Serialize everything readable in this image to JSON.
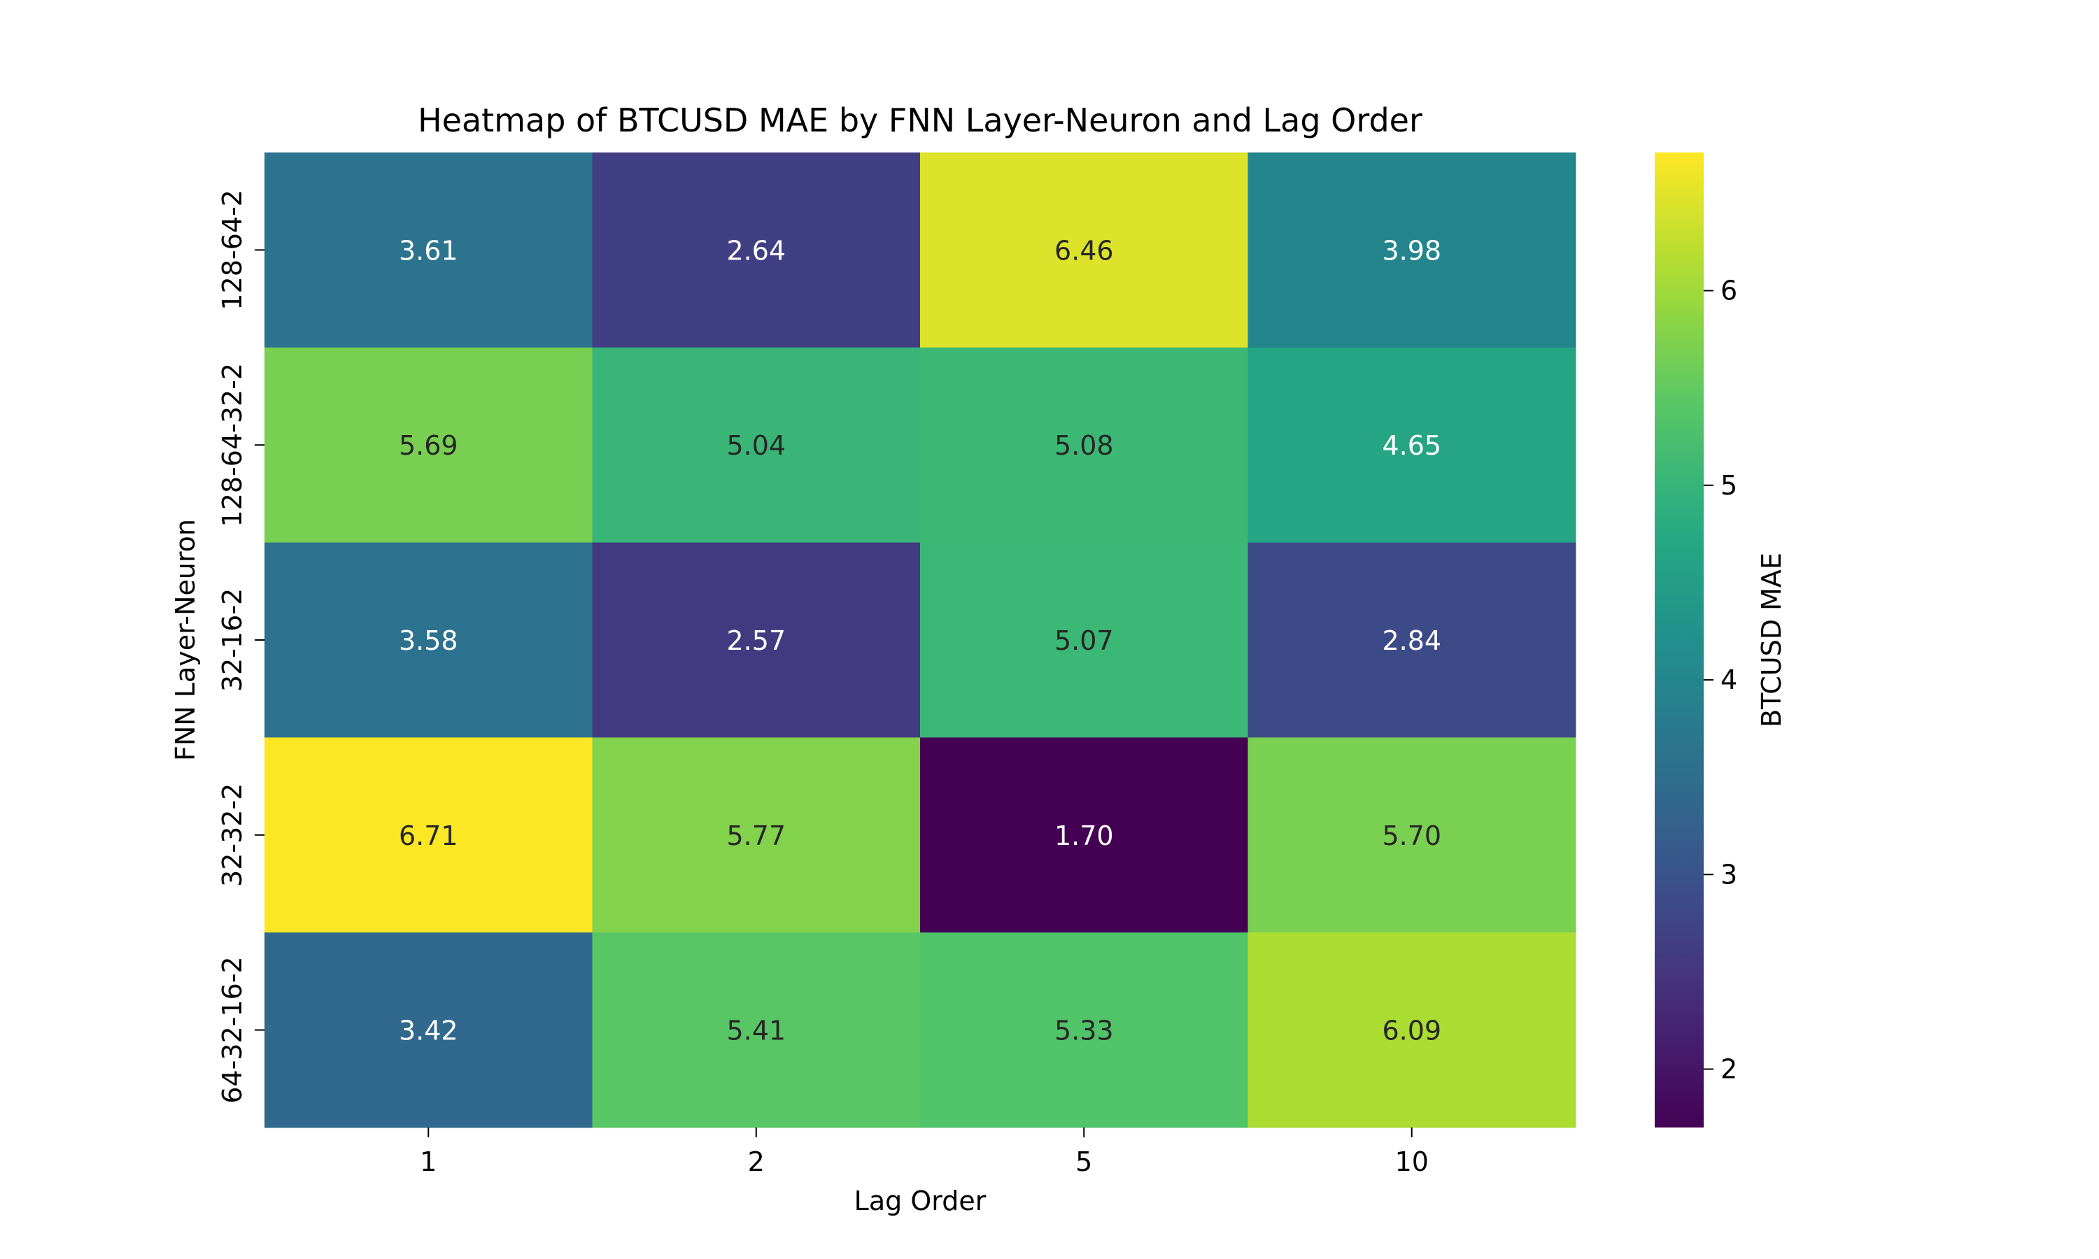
{
  "chart_data": {
    "type": "heatmap",
    "title": "Heatmap of BTCUSD MAE by FNN Layer-Neuron and Lag Order",
    "xlabel": "Lag Order",
    "ylabel": "FNN Layer-Neuron",
    "x_categories": [
      "1",
      "2",
      "5",
      "10"
    ],
    "y_categories": [
      "128-64-2",
      "128-64-32-2",
      "32-16-2",
      "32-32-2",
      "64-32-16-2"
    ],
    "values": [
      [
        3.61,
        2.64,
        6.46,
        3.98
      ],
      [
        5.69,
        5.04,
        5.08,
        4.65
      ],
      [
        3.58,
        2.57,
        5.07,
        2.84
      ],
      [
        6.71,
        5.77,
        1.7,
        5.7
      ],
      [
        3.42,
        5.41,
        5.33,
        6.09
      ]
    ],
    "value_format": "0.00",
    "colormap": "viridis",
    "colorbar": {
      "label": "BTCUSD MAE",
      "vmin": 1.7,
      "vmax": 6.71,
      "ticks": [
        "2",
        "3",
        "4",
        "5",
        "6"
      ]
    },
    "grid": false
  }
}
